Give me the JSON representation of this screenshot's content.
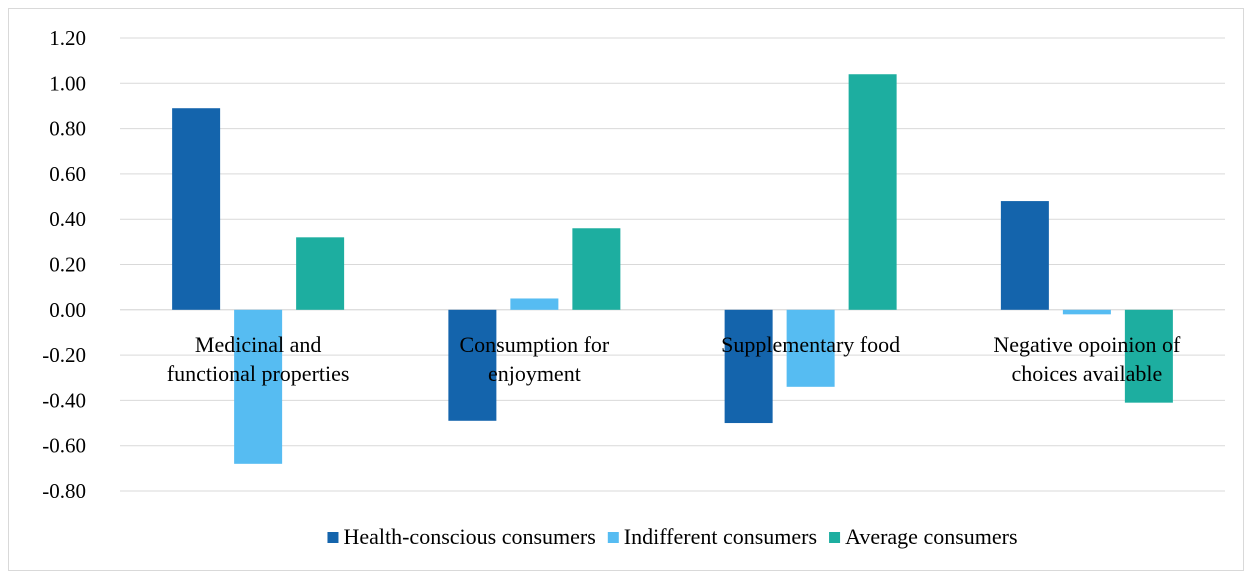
{
  "chart_data": {
    "type": "bar",
    "categories": [
      [
        "Medicinal and",
        "functional properties"
      ],
      [
        "Consumption for",
        "enjoyment"
      ],
      [
        "Supplementary food"
      ],
      [
        "Negative opoinion of",
        "choices available"
      ]
    ],
    "series": [
      {
        "name": "Health-conscious consumers",
        "color": "#1464ac",
        "values": [
          0.89,
          -0.49,
          -0.5,
          0.48
        ]
      },
      {
        "name": "Indifferent consumers",
        "color": "#56bcf2",
        "values": [
          -0.68,
          0.05,
          -0.34,
          -0.02
        ]
      },
      {
        "name": "Average consumers",
        "color": "#1daea0",
        "values": [
          0.32,
          0.36,
          1.04,
          -0.41
        ]
      }
    ],
    "ylim": [
      -0.8,
      1.2
    ],
    "ytick_step": 0.2,
    "ytick_labels": [
      "1.20",
      "1.00",
      "0.80",
      "0.60",
      "0.40",
      "0.20",
      "0.00",
      "-0.20",
      "-0.40",
      "-0.60",
      "-0.80"
    ],
    "grid": true,
    "legend_position": "bottom",
    "gridline_color": "#d9d9d9"
  }
}
